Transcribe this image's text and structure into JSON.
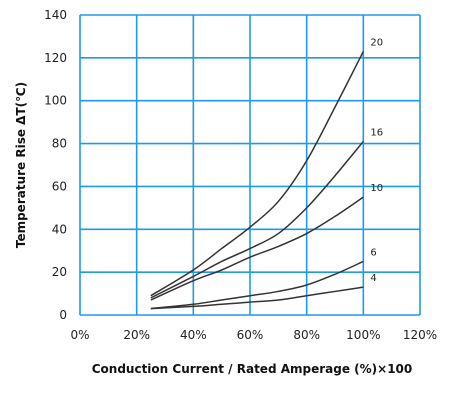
{
  "chart_data": {
    "type": "line",
    "xlabel": "Conduction Current / Rated Amperage (%)×100",
    "ylabel": "Temperature Rise ΔT(℃)",
    "xlim": [
      0,
      120
    ],
    "ylim": [
      0,
      140
    ],
    "x_ticks": [
      0,
      20,
      40,
      60,
      80,
      100,
      120
    ],
    "x_tick_labels": [
      "0%",
      "20%",
      "40%",
      "60%",
      "80%",
      "100%",
      "120%"
    ],
    "y_ticks": [
      0,
      20,
      40,
      60,
      80,
      100,
      120,
      140
    ],
    "y_tick_labels": [
      "0",
      "20",
      "40",
      "60",
      "80",
      "100",
      "120",
      "140"
    ],
    "grid": true,
    "grid_color": "#1e9be6",
    "series_color": "#333333",
    "series": [
      {
        "name": "20",
        "x": [
          25,
          40,
          50,
          60,
          70,
          80,
          90,
          100
        ],
        "y": [
          9,
          21,
          31,
          41,
          53,
          72,
          97,
          123
        ]
      },
      {
        "name": "16",
        "x": [
          25,
          40,
          50,
          60,
          70,
          80,
          90,
          100
        ],
        "y": [
          8,
          18,
          25,
          31,
          38,
          50,
          65,
          81
        ]
      },
      {
        "name": "10",
        "x": [
          25,
          40,
          50,
          60,
          70,
          80,
          90,
          100
        ],
        "y": [
          7,
          16,
          21,
          27,
          32,
          38,
          46,
          55
        ]
      },
      {
        "name": "6",
        "x": [
          25,
          40,
          50,
          60,
          70,
          80,
          90,
          100
        ],
        "y": [
          3,
          5,
          7,
          9,
          11,
          14,
          19,
          25
        ]
      },
      {
        "name": "4",
        "x": [
          25,
          40,
          50,
          60,
          70,
          80,
          90,
          100
        ],
        "y": [
          3,
          4,
          5,
          6,
          7,
          9,
          11,
          13
        ]
      }
    ]
  }
}
